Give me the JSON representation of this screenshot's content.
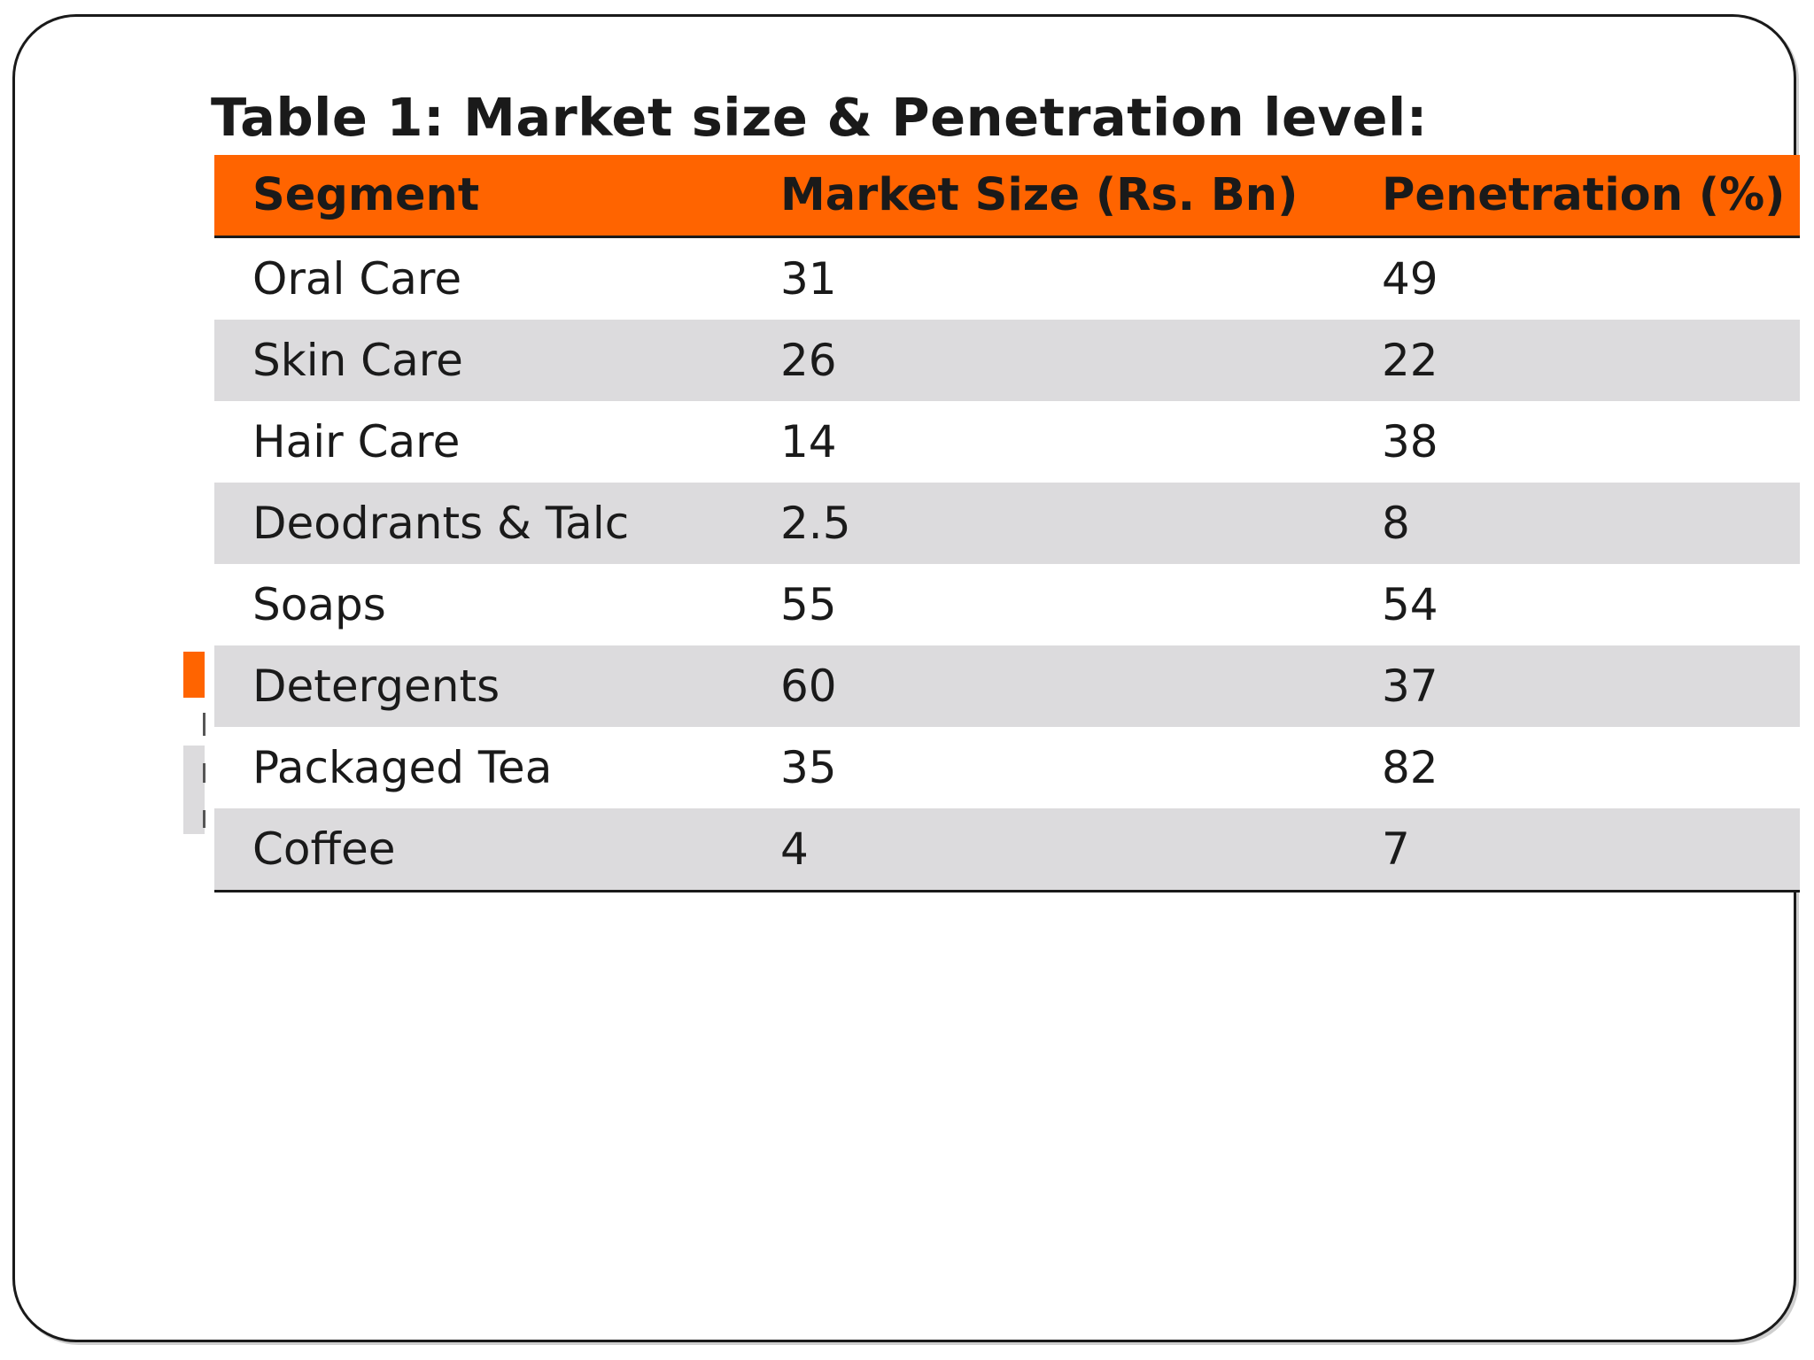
{
  "title": "Table 1: Market size & Penetration level:",
  "table": {
    "headers": [
      "Segment",
      "Market Size (Rs. Bn)",
      "Penetration (%)"
    ],
    "rows": [
      [
        "Oral Care",
        "31",
        "49"
      ],
      [
        "Skin Care",
        "26",
        "22"
      ],
      [
        "Hair Care",
        "14",
        "38"
      ],
      [
        "Deodrants & Talc",
        "2.5",
        "8"
      ],
      [
        "Soaps",
        "55",
        "54"
      ],
      [
        "Detergents",
        "60",
        "37"
      ],
      [
        "Packaged Tea",
        "35",
        "82"
      ],
      [
        "Coffee",
        "4",
        "7"
      ]
    ]
  },
  "colors": {
    "header_bg": "#ff6400",
    "stripe_bg": "#dcdbdd",
    "text": "#1a1a1a"
  }
}
